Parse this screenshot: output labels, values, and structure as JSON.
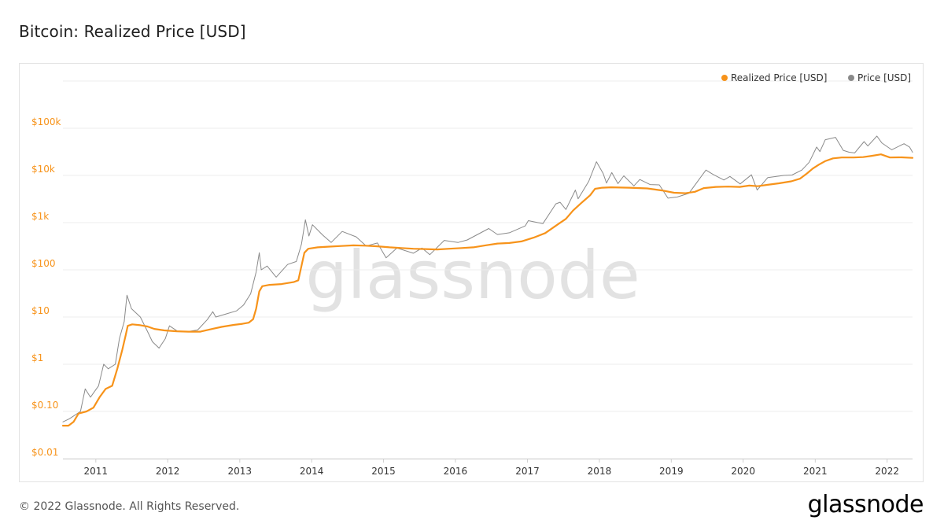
{
  "title": "Bitcoin: Realized Price [USD]",
  "footer": {
    "copyright": "© 2022 Glassnode. All Rights Reserved.",
    "logo_text": "glassnode"
  },
  "watermark": "glassnode",
  "colors": {
    "realized_price": "#f7931a",
    "price": "#8a8a8a",
    "grid": "#ececec",
    "axis_tick_text": "#f7931a"
  },
  "chart_data": {
    "type": "line",
    "title": "Bitcoin: Realized Price [USD]",
    "y_scale": "log",
    "ylim": [
      0.01,
      1000000
    ],
    "xlim": [
      "2010-07-18",
      "2022-05-10"
    ],
    "y_ticks": [
      {
        "value": 0.01,
        "label": "$0.01"
      },
      {
        "value": 0.1,
        "label": "$0.10"
      },
      {
        "value": 1,
        "label": "$1"
      },
      {
        "value": 10,
        "label": "$10"
      },
      {
        "value": 100,
        "label": "$100"
      },
      {
        "value": 1000,
        "label": "$1k"
      },
      {
        "value": 10000,
        "label": "$10k"
      },
      {
        "value": 100000,
        "label": "$100k"
      }
    ],
    "x_ticks": [
      "2011",
      "2012",
      "2013",
      "2014",
      "2015",
      "2016",
      "2017",
      "2018",
      "2019",
      "2020",
      "2021",
      "2022"
    ],
    "legend_position": "top-right",
    "grid": true,
    "series": [
      {
        "name": "Realized Price [USD]",
        "color": "#f7931a",
        "points": [
          [
            "2010-07-18",
            0.05
          ],
          [
            "2010-08-15",
            0.05
          ],
          [
            "2010-09-10",
            0.06
          ],
          [
            "2010-10-05",
            0.09
          ],
          [
            "2010-11-15",
            0.1
          ],
          [
            "2010-12-20",
            0.12
          ],
          [
            "2011-01-20",
            0.2
          ],
          [
            "2011-02-20",
            0.3
          ],
          [
            "2011-03-25",
            0.35
          ],
          [
            "2011-04-20",
            0.8
          ],
          [
            "2011-05-15",
            2.0
          ],
          [
            "2011-06-01",
            4.0
          ],
          [
            "2011-06-12",
            6.5
          ],
          [
            "2011-07-05",
            7.0
          ],
          [
            "2011-08-15",
            6.7
          ],
          [
            "2011-09-20",
            6.3
          ],
          [
            "2011-10-25",
            5.6
          ],
          [
            "2011-12-15",
            5.2
          ],
          [
            "2012-02-15",
            5.0
          ],
          [
            "2012-04-15",
            4.9
          ],
          [
            "2012-06-15",
            4.9
          ],
          [
            "2012-08-15",
            5.6
          ],
          [
            "2012-10-01",
            6.2
          ],
          [
            "2012-12-01",
            6.8
          ],
          [
            "2013-01-15",
            7.2
          ],
          [
            "2013-02-15",
            7.6
          ],
          [
            "2013-03-10",
            9.0
          ],
          [
            "2013-03-25",
            15
          ],
          [
            "2013-04-10",
            35
          ],
          [
            "2013-04-25",
            45
          ],
          [
            "2013-06-01",
            48
          ],
          [
            "2013-08-01",
            50
          ],
          [
            "2013-10-01",
            55
          ],
          [
            "2013-10-25",
            60
          ],
          [
            "2013-11-10",
            120
          ],
          [
            "2013-11-25",
            230
          ],
          [
            "2013-12-15",
            280
          ],
          [
            "2014-02-01",
            300
          ],
          [
            "2014-04-01",
            310
          ],
          [
            "2014-06-01",
            320
          ],
          [
            "2014-08-01",
            330
          ],
          [
            "2014-10-01",
            325
          ],
          [
            "2014-12-01",
            315
          ],
          [
            "2015-02-01",
            300
          ],
          [
            "2015-04-01",
            290
          ],
          [
            "2015-06-01",
            280
          ],
          [
            "2015-08-01",
            275
          ],
          [
            "2015-10-01",
            270
          ],
          [
            "2015-12-01",
            280
          ],
          [
            "2016-02-01",
            290
          ],
          [
            "2016-04-01",
            300
          ],
          [
            "2016-06-01",
            330
          ],
          [
            "2016-08-01",
            360
          ],
          [
            "2016-10-01",
            370
          ],
          [
            "2016-12-01",
            400
          ],
          [
            "2017-02-01",
            480
          ],
          [
            "2017-04-01",
            600
          ],
          [
            "2017-06-01",
            900
          ],
          [
            "2017-07-15",
            1200
          ],
          [
            "2017-08-20",
            1800
          ],
          [
            "2017-10-01",
            2600
          ],
          [
            "2017-11-15",
            3800
          ],
          [
            "2017-12-10",
            5200
          ],
          [
            "2018-01-15",
            5500
          ],
          [
            "2018-03-01",
            5600
          ],
          [
            "2018-06-01",
            5500
          ],
          [
            "2018-09-01",
            5300
          ],
          [
            "2018-11-15",
            4800
          ],
          [
            "2019-01-15",
            4300
          ],
          [
            "2019-03-15",
            4200
          ],
          [
            "2019-05-01",
            4500
          ],
          [
            "2019-06-15",
            5400
          ],
          [
            "2019-08-15",
            5700
          ],
          [
            "2019-10-15",
            5800
          ],
          [
            "2019-12-15",
            5700
          ],
          [
            "2020-02-01",
            6100
          ],
          [
            "2020-03-15",
            5900
          ],
          [
            "2020-05-01",
            6300
          ],
          [
            "2020-07-01",
            6800
          ],
          [
            "2020-09-01",
            7500
          ],
          [
            "2020-10-15",
            8500
          ],
          [
            "2020-11-20",
            11000
          ],
          [
            "2020-12-20",
            14000
          ],
          [
            "2021-01-20",
            17000
          ],
          [
            "2021-02-20",
            20000
          ],
          [
            "2021-04-01",
            23000
          ],
          [
            "2021-05-15",
            24000
          ],
          [
            "2021-07-15",
            24000
          ],
          [
            "2021-09-01",
            24500
          ],
          [
            "2021-10-15",
            26000
          ],
          [
            "2021-12-01",
            28000
          ],
          [
            "2022-01-15",
            24000
          ],
          [
            "2022-03-15",
            24200
          ],
          [
            "2022-05-10",
            23500
          ]
        ]
      },
      {
        "name": "Price [USD]",
        "color": "#8a8a8a",
        "points": [
          [
            "2010-07-18",
            0.06
          ],
          [
            "2010-08-20",
            0.07
          ],
          [
            "2010-10-15",
            0.1
          ],
          [
            "2010-11-08",
            0.3
          ],
          [
            "2010-12-05",
            0.2
          ],
          [
            "2011-01-15",
            0.35
          ],
          [
            "2011-02-10",
            1.0
          ],
          [
            "2011-03-05",
            0.8
          ],
          [
            "2011-04-10",
            1.0
          ],
          [
            "2011-05-01",
            3.5
          ],
          [
            "2011-05-25",
            8.0
          ],
          [
            "2011-06-08",
            29
          ],
          [
            "2011-07-01",
            15
          ],
          [
            "2011-08-15",
            10
          ],
          [
            "2011-09-20",
            5
          ],
          [
            "2011-10-15",
            3
          ],
          [
            "2011-11-18",
            2.2
          ],
          [
            "2011-12-20",
            3.5
          ],
          [
            "2012-01-10",
            6.5
          ],
          [
            "2012-02-20",
            5
          ],
          [
            "2012-04-20",
            5
          ],
          [
            "2012-06-01",
            5.3
          ],
          [
            "2012-07-20",
            8.8
          ],
          [
            "2012-08-17",
            13
          ],
          [
            "2012-09-01",
            10
          ],
          [
            "2012-10-20",
            11.5
          ],
          [
            "2012-12-15",
            13.5
          ],
          [
            "2013-01-20",
            18
          ],
          [
            "2013-02-25",
            31
          ],
          [
            "2013-03-25",
            90
          ],
          [
            "2013-04-10",
            230
          ],
          [
            "2013-04-20",
            100
          ],
          [
            "2013-05-20",
            120
          ],
          [
            "2013-07-05",
            70
          ],
          [
            "2013-09-01",
            130
          ],
          [
            "2013-10-15",
            150
          ],
          [
            "2013-11-10",
            350
          ],
          [
            "2013-11-30",
            1150
          ],
          [
            "2013-12-18",
            520
          ],
          [
            "2014-01-05",
            900
          ],
          [
            "2014-02-25",
            550
          ],
          [
            "2014-04-10",
            380
          ],
          [
            "2014-06-05",
            650
          ],
          [
            "2014-08-15",
            500
          ],
          [
            "2014-10-05",
            320
          ],
          [
            "2014-12-01",
            370
          ],
          [
            "2015-01-14",
            180
          ],
          [
            "2015-03-10",
            290
          ],
          [
            "2015-06-01",
            225
          ],
          [
            "2015-07-15",
            290
          ],
          [
            "2015-08-24",
            210
          ],
          [
            "2015-11-05",
            420
          ],
          [
            "2016-01-15",
            380
          ],
          [
            "2016-03-01",
            430
          ],
          [
            "2016-06-18",
            750
          ],
          [
            "2016-08-01",
            560
          ],
          [
            "2016-10-01",
            610
          ],
          [
            "2016-12-20",
            850
          ],
          [
            "2017-01-05",
            1100
          ],
          [
            "2017-03-20",
            950
          ],
          [
            "2017-05-25",
            2500
          ],
          [
            "2017-06-15",
            2700
          ],
          [
            "2017-07-15",
            1900
          ],
          [
            "2017-09-01",
            4900
          ],
          [
            "2017-09-15",
            3200
          ],
          [
            "2017-11-08",
            7500
          ],
          [
            "2017-12-17",
            19500
          ],
          [
            "2018-01-20",
            11000
          ],
          [
            "2018-02-06",
            6900
          ],
          [
            "2018-03-05",
            11500
          ],
          [
            "2018-04-05",
            6700
          ],
          [
            "2018-05-05",
            9800
          ],
          [
            "2018-06-25",
            6000
          ],
          [
            "2018-07-25",
            8200
          ],
          [
            "2018-09-15",
            6400
          ],
          [
            "2018-11-01",
            6300
          ],
          [
            "2018-12-15",
            3300
          ],
          [
            "2019-02-01",
            3500
          ],
          [
            "2019-04-01",
            4200
          ],
          [
            "2019-05-20",
            8000
          ],
          [
            "2019-06-26",
            13000
          ],
          [
            "2019-08-01",
            10500
          ],
          [
            "2019-09-25",
            8000
          ],
          [
            "2019-10-26",
            9500
          ],
          [
            "2019-12-17",
            6600
          ],
          [
            "2020-02-12",
            10300
          ],
          [
            "2020-03-12",
            4900
          ],
          [
            "2020-05-05",
            9000
          ],
          [
            "2020-07-25",
            10000
          ],
          [
            "2020-09-05",
            10200
          ],
          [
            "2020-10-25",
            13000
          ],
          [
            "2020-12-01",
            19000
          ],
          [
            "2021-01-08",
            40000
          ],
          [
            "2021-01-25",
            32000
          ],
          [
            "2021-02-21",
            57000
          ],
          [
            "2021-04-14",
            64000
          ],
          [
            "2021-05-23",
            34000
          ],
          [
            "2021-06-22",
            31000
          ],
          [
            "2021-07-20",
            30000
          ],
          [
            "2021-09-06",
            52000
          ],
          [
            "2021-09-25",
            42000
          ],
          [
            "2021-11-10",
            68000
          ],
          [
            "2021-12-05",
            49000
          ],
          [
            "2022-01-24",
            35000
          ],
          [
            "2022-03-28",
            47000
          ],
          [
            "2022-04-25",
            40000
          ],
          [
            "2022-05-10",
            31000
          ]
        ]
      }
    ]
  }
}
